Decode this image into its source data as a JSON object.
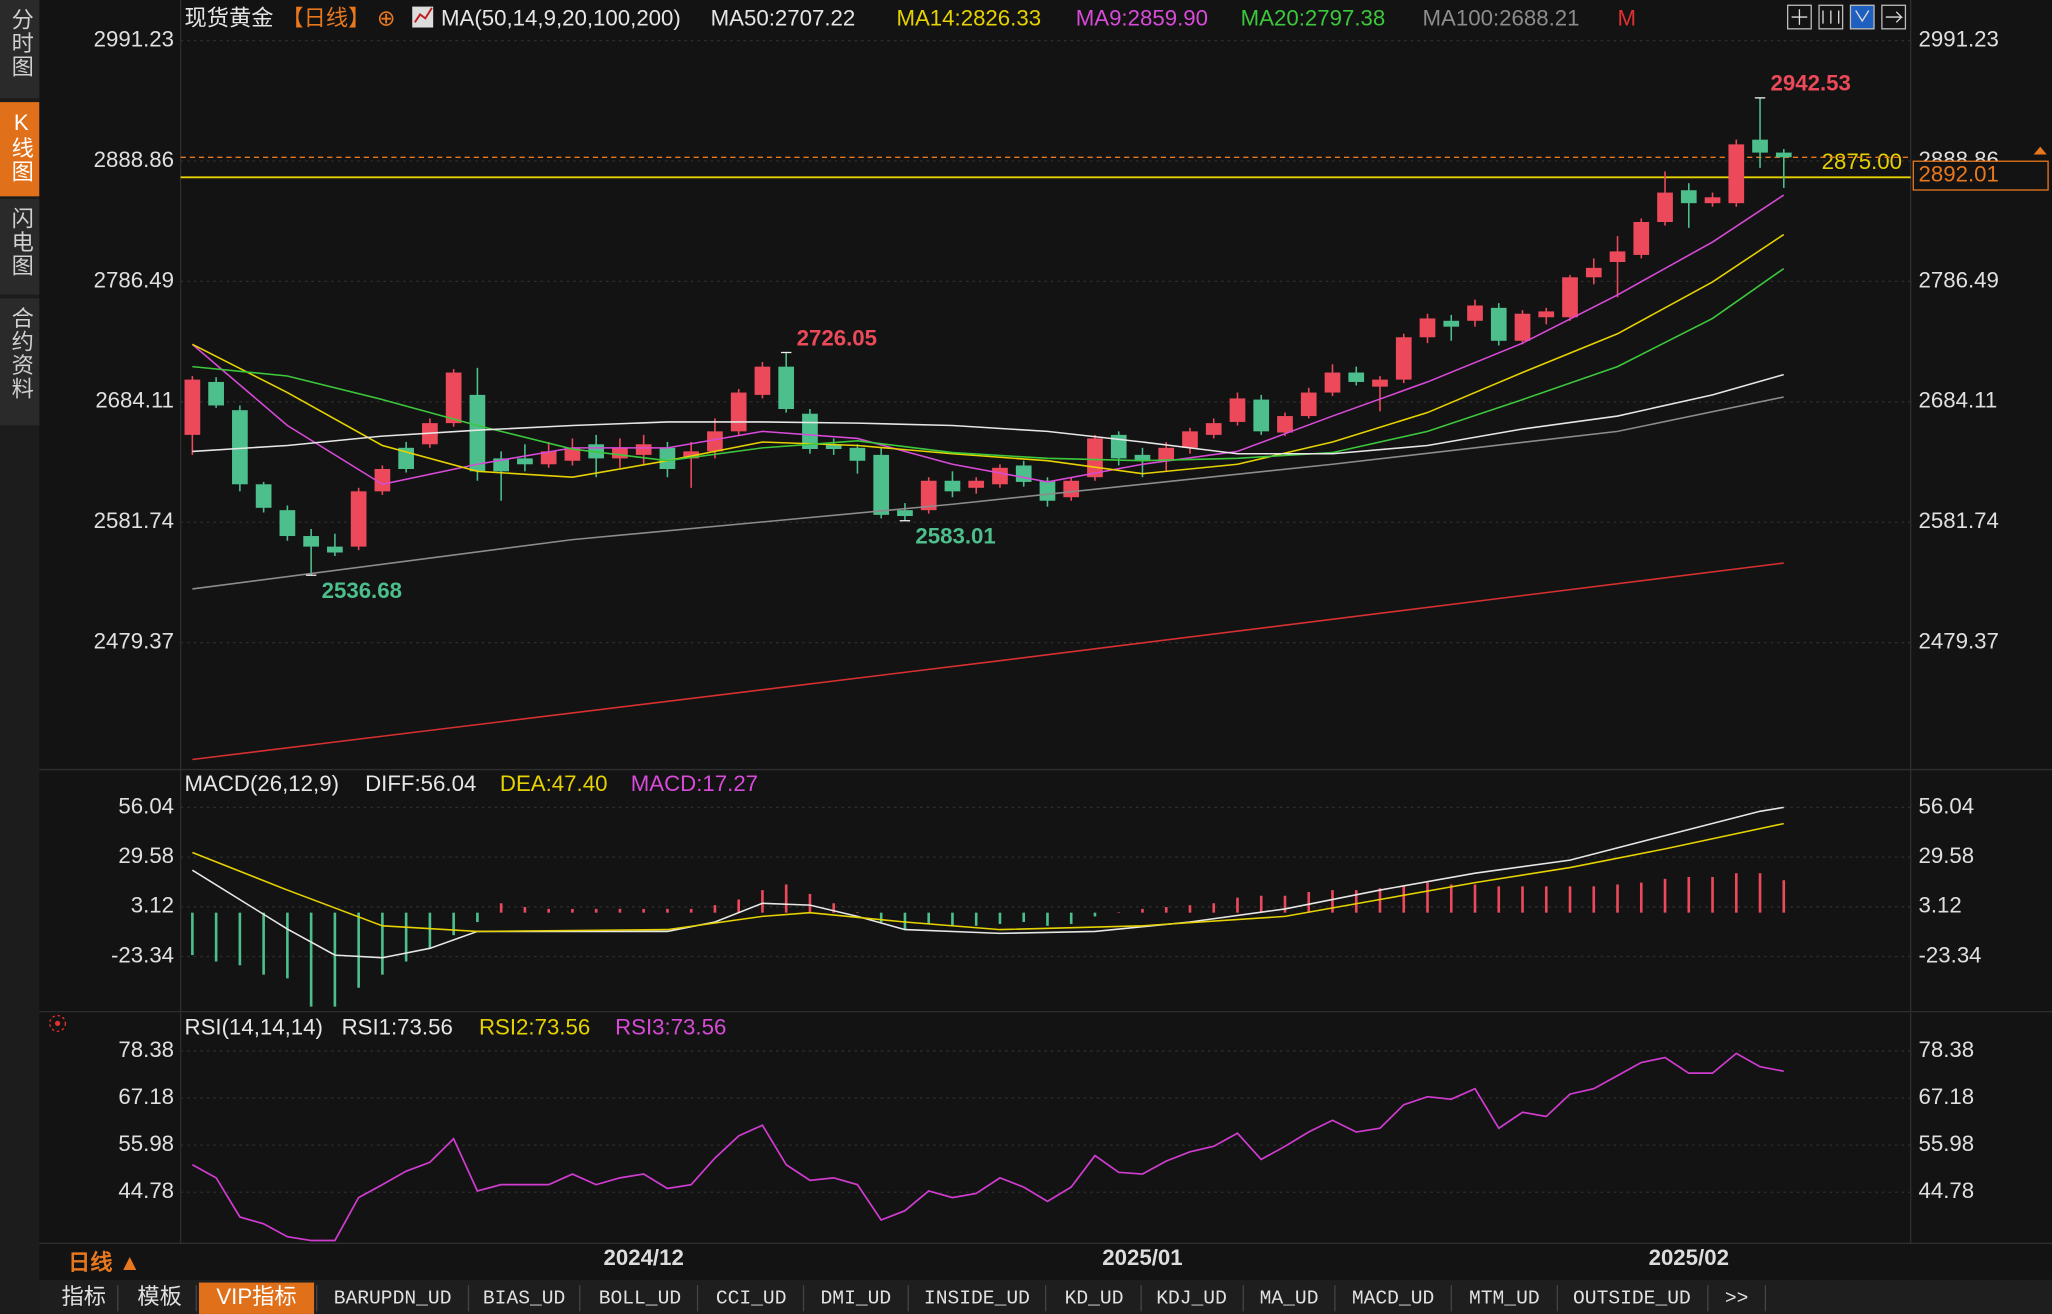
{
  "sidebar": {
    "tabs": [
      "分时图",
      "K线图",
      "闪电图",
      "合约资料"
    ],
    "active": 1
  },
  "chart_data": [
    {
      "type": "candlestick",
      "title": "现货黄金",
      "period": "【日线】",
      "marker": "⊕",
      "indicator": "MA(50,14,9,20,100,200)",
      "legend": [
        {
          "text": "MA50:2707.22",
          "color": "#e6e6e6"
        },
        {
          "text": "MA14:2826.33",
          "color": "#e6d200"
        },
        {
          "text": "MA9:2859.90",
          "color": "#d84ad8"
        },
        {
          "text": "MA20:2797.38",
          "color": "#3cc83c"
        },
        {
          "text": "MA100:2688.21",
          "color": "#8c8c8c"
        },
        {
          "text": "M",
          "color": "#e03030"
        }
      ],
      "categories": [
        null,
        null,
        null,
        null,
        null,
        null,
        null,
        null,
        null,
        null,
        null,
        null,
        null,
        null,
        null,
        null,
        null,
        null,
        null,
        "2024/12",
        null,
        null,
        null,
        null,
        null,
        null,
        null,
        null,
        null,
        null,
        null,
        null,
        null,
        null,
        null,
        null,
        null,
        null,
        null,
        null,
        "2025/01",
        null,
        null,
        null,
        null,
        null,
        null,
        null,
        null,
        null,
        null,
        null,
        null,
        null,
        null,
        null,
        null,
        null,
        null,
        null,
        null,
        null,
        null,
        "2025/02",
        null,
        null,
        null,
        null
      ],
      "values": [
        [
          2656,
          2706,
          2639,
          2703
        ],
        [
          2701,
          2705,
          2679,
          2681
        ],
        [
          2677,
          2681,
          2608,
          2614
        ],
        [
          2614,
          2616,
          2590,
          2594
        ],
        [
          2592,
          2596,
          2566,
          2570
        ],
        [
          2570,
          2576,
          2536.68,
          2561
        ],
        [
          2561,
          2572,
          2553,
          2556
        ],
        [
          2561,
          2611,
          2558,
          2608
        ],
        [
          2608,
          2630,
          2605,
          2627
        ],
        [
          2645,
          2650,
          2624,
          2627
        ],
        [
          2648,
          2670,
          2645,
          2666
        ],
        [
          2666,
          2712,
          2663,
          2709
        ],
        [
          2690,
          2713,
          2617,
          2625
        ],
        [
          2636,
          2642,
          2600,
          2625
        ],
        [
          2636,
          2648,
          2625,
          2631
        ],
        [
          2631,
          2650,
          2628,
          2642
        ],
        [
          2634,
          2653,
          2630,
          2645
        ],
        [
          2648,
          2656,
          2620,
          2636
        ],
        [
          2636,
          2653,
          2628,
          2645
        ],
        [
          2639,
          2656,
          2631,
          2648
        ],
        [
          2645,
          2650,
          2620,
          2627
        ],
        [
          2636,
          2650,
          2611,
          2642
        ],
        [
          2642,
          2670,
          2636,
          2659
        ],
        [
          2659,
          2695,
          2656,
          2692
        ],
        [
          2690,
          2718,
          2687,
          2714
        ],
        [
          2714,
          2726.05,
          2675,
          2678
        ],
        [
          2674,
          2678,
          2640,
          2644
        ],
        [
          2648,
          2653,
          2639,
          2644
        ],
        [
          2645,
          2648,
          2623,
          2634
        ],
        [
          2639,
          2645,
          2585,
          2588
        ],
        [
          2592,
          2598,
          2583.01,
          2587
        ],
        [
          2592,
          2620,
          2589,
          2617
        ],
        [
          2617,
          2625,
          2603,
          2608
        ],
        [
          2611,
          2620,
          2606,
          2617
        ],
        [
          2614,
          2631,
          2611,
          2628
        ],
        [
          2630,
          2634,
          2612,
          2616
        ],
        [
          2617,
          2620,
          2595,
          2600
        ],
        [
          2603,
          2620,
          2600,
          2617
        ],
        [
          2620,
          2656,
          2617,
          2653
        ],
        [
          2656,
          2659,
          2630,
          2636
        ],
        [
          2639,
          2645,
          2620,
          2634
        ],
        [
          2634,
          2650,
          2625,
          2645
        ],
        [
          2645,
          2662,
          2640,
          2659
        ],
        [
          2656,
          2670,
          2653,
          2666
        ],
        [
          2667,
          2692,
          2664,
          2687
        ],
        [
          2686,
          2690,
          2656,
          2659
        ],
        [
          2658,
          2675,
          2655,
          2672
        ],
        [
          2672,
          2696,
          2670,
          2692
        ],
        [
          2692,
          2716,
          2689,
          2709
        ],
        [
          2709,
          2714,
          2698,
          2701
        ],
        [
          2697,
          2706,
          2676,
          2703
        ],
        [
          2703,
          2742,
          2700,
          2739
        ],
        [
          2739,
          2759,
          2734,
          2755
        ],
        [
          2753,
          2758,
          2736,
          2748
        ],
        [
          2753,
          2771,
          2748,
          2766
        ],
        [
          2764,
          2768,
          2732,
          2736
        ],
        [
          2736,
          2762,
          2733,
          2759
        ],
        [
          2756,
          2764,
          2750,
          2761
        ],
        [
          2756,
          2792,
          2753,
          2790
        ],
        [
          2790,
          2806,
          2784,
          2798
        ],
        [
          2803,
          2825,
          2773,
          2812
        ],
        [
          2809,
          2840,
          2806,
          2837
        ],
        [
          2837,
          2880,
          2834,
          2862
        ],
        [
          2864,
          2870,
          2832,
          2853
        ],
        [
          2853,
          2862,
          2850,
          2858
        ],
        [
          2853,
          2907,
          2850,
          2903
        ],
        [
          2907,
          2942.53,
          2883,
          2896
        ],
        [
          2896,
          2899,
          2866,
          2892.01
        ]
      ],
      "up_color": "#ec4a5a",
      "down_color": "#4cbf8c",
      "lines": [
        {
          "color": "#d84ad8",
          "x": [
            0,
            4,
            8,
            12,
            16,
            20,
            24,
            28,
            32,
            36,
            40,
            44,
            48,
            52,
            56,
            60,
            64,
            67
          ],
          "values": [
            2733,
            2664,
            2614,
            2631,
            2645,
            2645,
            2659,
            2653,
            2631,
            2616,
            2631,
            2642,
            2672,
            2701,
            2734,
            2775,
            2820,
            2859.9
          ]
        },
        {
          "color": "#e6d200",
          "x": [
            0,
            4,
            8,
            12,
            16,
            20,
            24,
            28,
            32,
            36,
            40,
            44,
            48,
            52,
            56,
            60,
            64,
            67
          ],
          "values": [
            2733,
            2692,
            2647,
            2625,
            2620,
            2634,
            2650,
            2647,
            2640,
            2634,
            2623,
            2631,
            2650,
            2675,
            2709,
            2742,
            2786,
            2826.33
          ]
        },
        {
          "color": "#3cc83c",
          "x": [
            0,
            4,
            8,
            12,
            16,
            20,
            24,
            28,
            32,
            36,
            40,
            44,
            48,
            52,
            56,
            60,
            64,
            67
          ],
          "values": [
            2714,
            2706,
            2686,
            2664,
            2644,
            2634,
            2645,
            2651,
            2641,
            2636,
            2634,
            2636,
            2641,
            2659,
            2686,
            2714,
            2755,
            2797.38
          ]
        },
        {
          "color": "#e6e6e6",
          "x": [
            0,
            4,
            8,
            12,
            16,
            20,
            24,
            28,
            32,
            36,
            40,
            44,
            48,
            52,
            56,
            60,
            64,
            67
          ],
          "values": [
            2642,
            2647,
            2655,
            2660,
            2664,
            2667,
            2667,
            2666,
            2664,
            2659,
            2650,
            2640,
            2640,
            2647,
            2661,
            2672,
            2690,
            2707.22
          ]
        },
        {
          "color": "#8c8c8c",
          "x": [
            0,
            16,
            32,
            48,
            60,
            67
          ],
          "values": [
            2525,
            2567,
            2597,
            2631,
            2659,
            2688.21
          ]
        },
        {
          "color": "#d83030",
          "x": [
            0,
            34,
            67
          ],
          "values": [
            2380,
            2464,
            2547
          ]
        }
      ],
      "last": {
        "value": 2892.01,
        "color": "#e8781e"
      },
      "level": {
        "value": 2875,
        "label": "2875.00",
        "color": "#e6d200"
      },
      "ylim": [
        2374.8,
        2999.0
      ],
      "yticks": [
        2479.37,
        2581.74,
        2684.11,
        2786.49,
        2888.86,
        2991.23
      ],
      "grid": true
    },
    {
      "type": "macd",
      "indicator": "MACD(26,12,9)",
      "legend": [
        {
          "text": "DIFF:56.04",
          "color": "#e6e6e6"
        },
        {
          "text": "DEA:47.40",
          "color": "#e6d200"
        },
        {
          "text": "MACD:17.27",
          "color": "#d84ad8"
        }
      ],
      "values": [
        -22.6,
        -26,
        -28,
        -33,
        -35,
        -50,
        -50,
        -40,
        -33,
        -26,
        -19,
        -12,
        -5,
        5,
        3,
        2,
        2,
        2,
        2,
        2,
        2,
        2,
        4,
        7,
        12,
        15,
        10,
        5,
        0.3,
        -5,
        -9,
        -6,
        -7,
        -7,
        -6,
        -5,
        -7,
        -6,
        -2,
        0.3,
        2,
        3,
        4,
        5,
        8,
        9,
        9,
        11,
        12,
        12,
        13,
        14,
        16,
        15,
        15,
        14,
        14,
        14,
        14,
        14,
        15,
        16,
        18,
        19,
        19,
        21,
        21,
        17.27
      ],
      "up_color": "#ec4a5a",
      "down_color": "#4cbf8c",
      "lines": [
        {
          "color": "#e6e6e6",
          "x": [
            0,
            4,
            6,
            8,
            10,
            12,
            16,
            20,
            22,
            24,
            26,
            28,
            30,
            34,
            38,
            42,
            46,
            50,
            54,
            58,
            62,
            66,
            67
          ],
          "values": [
            22.6,
            -8.7,
            -22.6,
            -24,
            -19,
            -10,
            -10,
            -10,
            -5,
            5,
            4,
            -2,
            -9,
            -11,
            -10,
            -5,
            2,
            12,
            21,
            28,
            41,
            54,
            56.04
          ]
        },
        {
          "color": "#e6d200",
          "x": [
            0,
            4,
            8,
            12,
            20,
            24,
            26,
            30,
            34,
            40,
            46,
            50,
            54,
            58,
            62,
            67
          ],
          "values": [
            32,
            12,
            -7,
            -10,
            -9,
            -2,
            0,
            -5,
            -9,
            -7,
            -2,
            7,
            16,
            24,
            34,
            47.4
          ]
        }
      ],
      "ylim": [
        -52,
        74.8
      ],
      "yticks": [
        -23.34,
        3.12,
        29.58,
        56.04
      ],
      "grid": true
    },
    {
      "type": "line",
      "indicator": "RSI(14,14,14)",
      "legend": [
        {
          "text": "RSI1:73.56",
          "color": "#e6e6e6"
        },
        {
          "text": "RSI2:73.56",
          "color": "#e6d200"
        },
        {
          "text": "RSI3:73.56",
          "color": "#d84ad8"
        }
      ],
      "color": "#d03cd0",
      "values": [
        51.3,
        48.2,
        38.9,
        37.3,
        34.2,
        33.3,
        33.3,
        43.5,
        46.6,
        49.8,
        51.9,
        57.5,
        45.1,
        46.6,
        46.6,
        46.6,
        49.1,
        46.6,
        48.2,
        49.1,
        45.7,
        46.6,
        52.9,
        58.2,
        60.7,
        51.3,
        47.6,
        48.2,
        46.6,
        38.2,
        40.4,
        45.1,
        43.5,
        44.5,
        48.2,
        46.0,
        42.6,
        46.0,
        53.5,
        49.5,
        49.1,
        52.2,
        54.4,
        55.7,
        58.8,
        52.6,
        55.7,
        59.1,
        61.9,
        59.1,
        60.0,
        65.6,
        67.5,
        66.9,
        69.4,
        60.0,
        63.8,
        62.8,
        68.1,
        69.4,
        72.5,
        75.6,
        76.8,
        73.1,
        73.1,
        77.8,
        74.6,
        73.56
      ],
      "ylim": [
        32.65,
        87.09
      ],
      "yticks": [
        44.78,
        55.98,
        67.18,
        78.38
      ],
      "grid": true
    }
  ],
  "footer": {
    "period": "日线 ▲",
    "tabs": [
      "指标",
      "模板",
      "VIP指标",
      "BARUPDN_UD",
      "BIAS_UD",
      "BOLL_UD",
      "CCI_UD",
      "DMI_UD",
      "INSIDE_UD",
      "KD_UD",
      "KDJ_UD",
      "MA_UD",
      "MACD_UD",
      "MTM_UD",
      "OUTSIDE_UD",
      ">>"
    ],
    "active": 2
  }
}
